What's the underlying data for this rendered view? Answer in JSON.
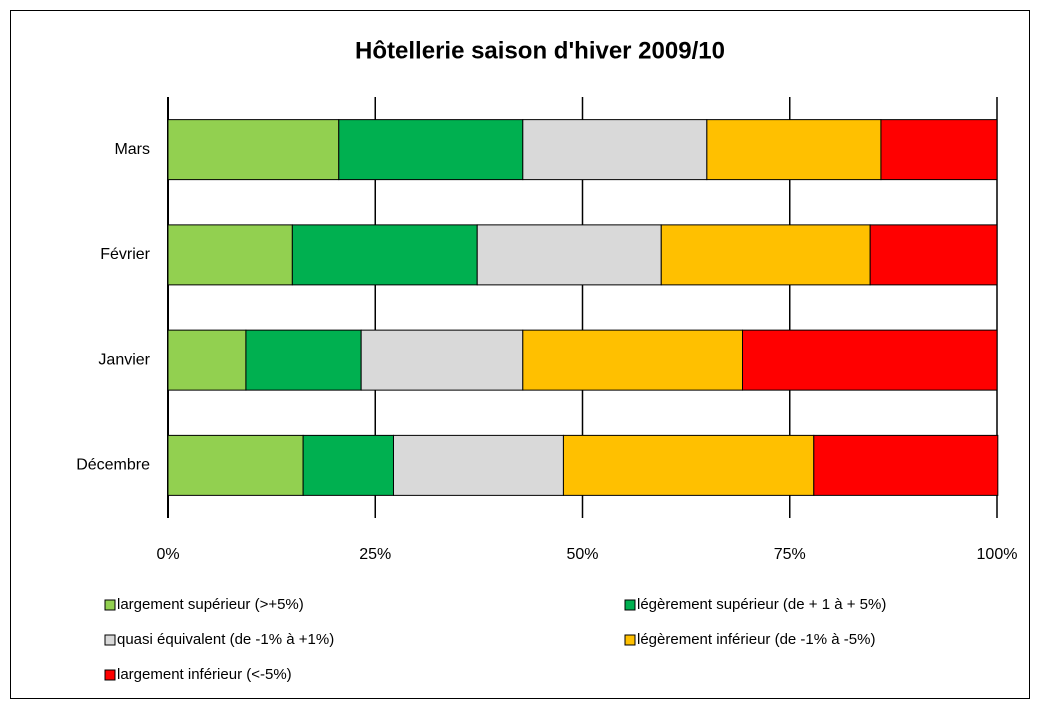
{
  "chart_data": {
    "type": "bar",
    "orientation": "horizontal",
    "stacked": true,
    "title": "Hôtellerie saison d'hiver 2009/10",
    "categories": [
      "Mars",
      "Février",
      "Janvier",
      "Décembre"
    ],
    "series": [
      {
        "name": "largement supérieur (>+5%)",
        "color": "#92d050",
        "values": [
          20.6,
          15.0,
          9.4,
          16.3
        ]
      },
      {
        "name": "légèrement supérieur (de + 1 à + 5%)",
        "color": "#00b050",
        "values": [
          22.2,
          22.3,
          13.9,
          10.9
        ]
      },
      {
        "name": "quasi équivalent (de  -1% à +1%)",
        "color": "#d9d9d9",
        "values": [
          22.2,
          22.2,
          19.5,
          20.5
        ]
      },
      {
        "name": "légèrement inférieur (de -1% à -5%)",
        "color": "#ffc000",
        "values": [
          21.0,
          25.2,
          26.5,
          30.2
        ]
      },
      {
        "name": "largement inférieur (<-5%)",
        "color": "#ff0000",
        "values": [
          14.0,
          15.3,
          30.7,
          22.2
        ]
      }
    ],
    "xlim": [
      0,
      100
    ],
    "xticks": [
      {
        "value": 0,
        "label": "0%"
      },
      {
        "value": 25,
        "label": "25%"
      },
      {
        "value": 50,
        "label": "50%"
      },
      {
        "value": 75,
        "label": "75%"
      },
      {
        "value": 100,
        "label": "100%"
      }
    ],
    "grid": true,
    "legend": "bottom"
  }
}
